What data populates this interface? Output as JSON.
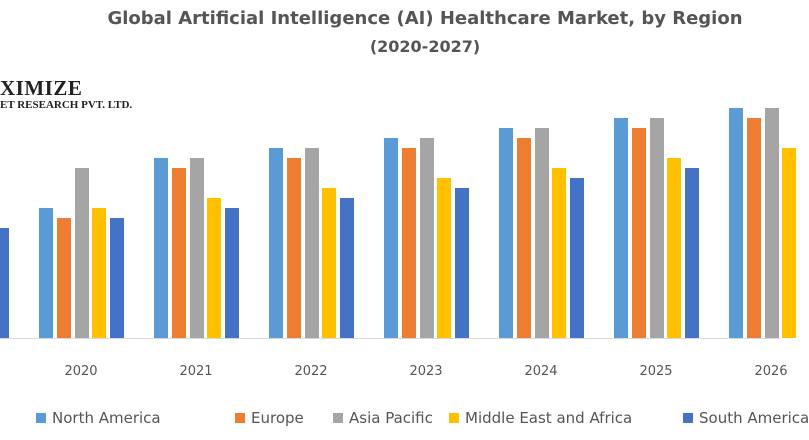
{
  "logo": {
    "line1": "XIMIZE",
    "line2": "ET RESEARCH PVT. LTD."
  },
  "chart_data": {
    "type": "bar",
    "title": "Global Artificial Intelligence (AI) Healthcare Market, by Region",
    "subtitle": "(2020-2027)",
    "xlabel": "",
    "ylabel": "",
    "y_axis_shown": false,
    "grid": false,
    "legend_position": "bottom",
    "categories": [
      "",
      "2020",
      "2021",
      "2022",
      "2023",
      "2024",
      "2025",
      "2026"
    ],
    "series": [
      {
        "name": "North America",
        "color": "#5B9BD5",
        "values": [
          null,
          13,
          18,
          19,
          20,
          21,
          22,
          23
        ]
      },
      {
        "name": "Europe",
        "color": "#ED7D31",
        "values": [
          null,
          12,
          17,
          18,
          19,
          20,
          21,
          22
        ]
      },
      {
        "name": "Asia Pacific",
        "color": "#A5A5A5",
        "values": [
          null,
          17,
          18,
          19,
          20,
          21,
          22,
          23
        ]
      },
      {
        "name": "Middle East and Africa",
        "color": "#FFC000",
        "values": [
          null,
          13,
          14,
          15,
          16,
          17,
          18,
          19
        ]
      },
      {
        "name": "South America",
        "color": "#4472C4",
        "values": [
          11,
          12,
          13,
          14,
          15,
          16,
          17,
          null
        ]
      }
    ]
  }
}
